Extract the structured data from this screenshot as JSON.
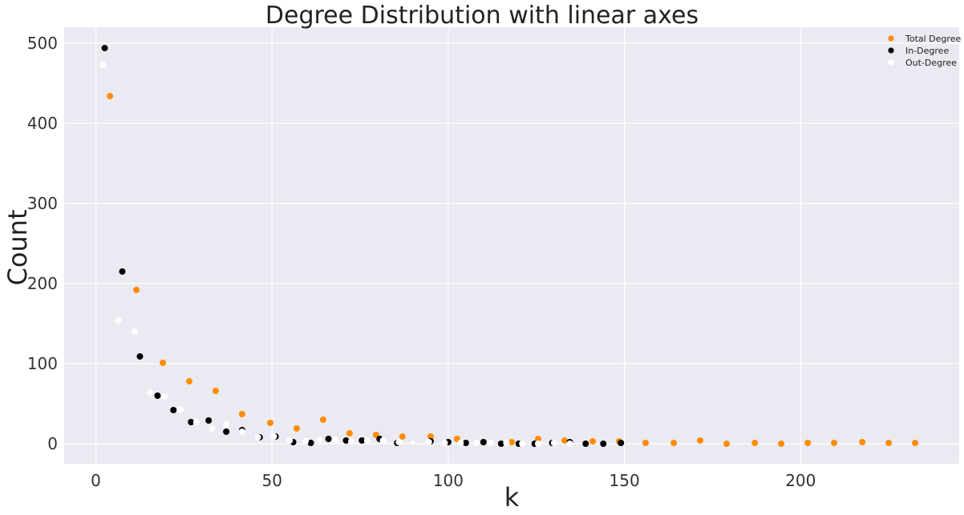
{
  "chart_data": {
    "type": "scatter",
    "title": "Degree Distribution with linear axes",
    "xlabel": "k",
    "ylabel": "Count",
    "xlim": [
      -9,
      245
    ],
    "ylim": [
      -25,
      520
    ],
    "x_ticks": [
      0,
      50,
      100,
      150,
      200
    ],
    "y_ticks": [
      0,
      100,
      200,
      300,
      400,
      500
    ],
    "grid": true,
    "background": "#eaeaf2",
    "legend_position": "top-right",
    "series": [
      {
        "name": "Total Degree",
        "color": "#ff8c00",
        "points": [
          [
            4,
            434
          ],
          [
            11.5,
            192
          ],
          [
            19,
            101
          ],
          [
            26.5,
            78
          ],
          [
            34,
            66
          ],
          [
            41.5,
            37
          ],
          [
            49.5,
            26
          ],
          [
            57,
            19
          ],
          [
            64.5,
            30
          ],
          [
            72,
            13
          ],
          [
            79.5,
            11
          ],
          [
            87,
            9
          ],
          [
            95,
            9
          ],
          [
            102.5,
            6
          ],
          [
            110,
            2
          ],
          [
            118,
            2
          ],
          [
            125.5,
            6
          ],
          [
            133,
            4
          ],
          [
            141,
            3
          ],
          [
            148.5,
            3
          ],
          [
            156,
            1
          ],
          [
            164,
            1
          ],
          [
            171.5,
            4
          ],
          [
            179,
            0
          ],
          [
            187,
            1
          ],
          [
            194.5,
            0
          ],
          [
            202,
            1
          ],
          [
            209.5,
            1
          ],
          [
            217.5,
            2
          ],
          [
            225,
            1
          ],
          [
            232.5,
            1
          ]
        ]
      },
      {
        "name": "In-Degree",
        "color": "#000000",
        "points": [
          [
            2.5,
            494
          ],
          [
            7.5,
            215
          ],
          [
            12.5,
            109
          ],
          [
            17.5,
            60
          ],
          [
            22,
            42
          ],
          [
            27,
            27
          ],
          [
            32,
            29
          ],
          [
            37,
            15
          ],
          [
            41.5,
            17
          ],
          [
            46.5,
            8
          ],
          [
            51,
            9
          ],
          [
            56,
            2
          ],
          [
            61,
            1
          ],
          [
            66,
            6
          ],
          [
            71,
            4
          ],
          [
            75.5,
            4
          ],
          [
            80.5,
            6
          ],
          [
            85.5,
            1
          ],
          [
            90,
            1
          ],
          [
            95,
            3
          ],
          [
            100,
            2
          ],
          [
            105,
            1
          ],
          [
            110,
            2
          ],
          [
            115,
            0
          ],
          [
            120,
            0
          ],
          [
            124.5,
            0
          ],
          [
            129.5,
            1
          ],
          [
            134.5,
            2
          ],
          [
            139,
            0
          ],
          [
            144,
            0
          ],
          [
            149,
            1
          ]
        ]
      },
      {
        "name": "Out-Degree",
        "color": "#ffffff",
        "points": [
          [
            2,
            473
          ],
          [
            6.5,
            154
          ],
          [
            11,
            140
          ],
          [
            15.5,
            64
          ],
          [
            19.5,
            59
          ],
          [
            24,
            43
          ],
          [
            28.5,
            27
          ],
          [
            33,
            19
          ],
          [
            37,
            24
          ],
          [
            41.5,
            15
          ],
          [
            46,
            8
          ],
          [
            50.5,
            9
          ],
          [
            55,
            4
          ],
          [
            59.5,
            3
          ],
          [
            63.5,
            5
          ],
          [
            68,
            5
          ],
          [
            72.5,
            3
          ],
          [
            77,
            4
          ],
          [
            81.5,
            4
          ],
          [
            86,
            2
          ],
          [
            90,
            1
          ],
          [
            94.5,
            2
          ],
          [
            99,
            1
          ],
          [
            103.5,
            1
          ],
          [
            108,
            1
          ],
          [
            112,
            1
          ],
          [
            116.5,
            1
          ],
          [
            121,
            0
          ],
          [
            125.5,
            0
          ],
          [
            130,
            1
          ],
          [
            134.5,
            0
          ]
        ]
      }
    ]
  }
}
